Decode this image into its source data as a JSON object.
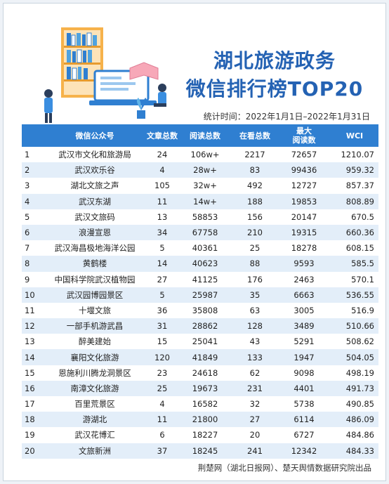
{
  "title": {
    "line1": "湖北旅游政务",
    "line2": "微信排行榜TOP20"
  },
  "stat_time": "统计时间：2022年1月1日–2022年1月31日",
  "table": {
    "headers": {
      "rank": "",
      "name": "微信公众号",
      "articles": "文章总数",
      "reads": "阅读总数",
      "watching": "在看总数",
      "max_reads_l1": "最大",
      "max_reads_l2": "阅读数",
      "wci": "WCI"
    },
    "rows": [
      {
        "rank": "1",
        "name": "武汉市文化和旅游局",
        "articles": "24",
        "reads": "106w+",
        "watching": "2217",
        "max_reads": "72657",
        "wci": "1210.07"
      },
      {
        "rank": "2",
        "name": "武汉欢乐谷",
        "articles": "4",
        "reads": "28w+",
        "watching": "83",
        "max_reads": "99436",
        "wci": "959.32"
      },
      {
        "rank": "3",
        "name": "湖北文旅之声",
        "articles": "105",
        "reads": "32w+",
        "watching": "492",
        "max_reads": "12727",
        "wci": "857.37"
      },
      {
        "rank": "4",
        "name": "武汉东湖",
        "articles": "11",
        "reads": "14w+",
        "watching": "188",
        "max_reads": "19853",
        "wci": "808.89"
      },
      {
        "rank": "5",
        "name": "武汉文旅码",
        "articles": "13",
        "reads": "58853",
        "watching": "156",
        "max_reads": "20147",
        "wci": "670.5"
      },
      {
        "rank": "6",
        "name": "浪漫宣恩",
        "articles": "34",
        "reads": "67758",
        "watching": "210",
        "max_reads": "19315",
        "wci": "660.36"
      },
      {
        "rank": "7",
        "name": "武汉海昌极地海洋公园",
        "articles": "5",
        "reads": "40361",
        "watching": "25",
        "max_reads": "18278",
        "wci": "608.15"
      },
      {
        "rank": "8",
        "name": "黄鹤楼",
        "articles": "14",
        "reads": "40623",
        "watching": "88",
        "max_reads": "9593",
        "wci": "585.5"
      },
      {
        "rank": "9",
        "name": "中国科学院武汉植物园",
        "articles": "27",
        "reads": "41125",
        "watching": "176",
        "max_reads": "2463",
        "wci": "570.1"
      },
      {
        "rank": "10",
        "name": "武汉园博园景区",
        "articles": "5",
        "reads": "25987",
        "watching": "35",
        "max_reads": "6663",
        "wci": "536.55"
      },
      {
        "rank": "11",
        "name": "十堰文旅",
        "articles": "36",
        "reads": "35808",
        "watching": "63",
        "max_reads": "3005",
        "wci": "516.9"
      },
      {
        "rank": "12",
        "name": "一部手机游武昌",
        "articles": "31",
        "reads": "28862",
        "watching": "128",
        "max_reads": "3489",
        "wci": "510.66"
      },
      {
        "rank": "13",
        "name": "醉美建始",
        "articles": "15",
        "reads": "25041",
        "watching": "43",
        "max_reads": "5291",
        "wci": "508.62"
      },
      {
        "rank": "14",
        "name": "襄阳文化旅游",
        "articles": "120",
        "reads": "41849",
        "watching": "133",
        "max_reads": "1947",
        "wci": "504.05"
      },
      {
        "rank": "15",
        "name": "恩施利川腾龙洞景区",
        "articles": "23",
        "reads": "24618",
        "watching": "62",
        "max_reads": "9098",
        "wci": "498.19"
      },
      {
        "rank": "16",
        "name": "南漳文化旅游",
        "articles": "25",
        "reads": "19673",
        "watching": "231",
        "max_reads": "4401",
        "wci": "491.73"
      },
      {
        "rank": "17",
        "name": "百里荒景区",
        "articles": "4",
        "reads": "16582",
        "watching": "32",
        "max_reads": "5738",
        "wci": "490.85"
      },
      {
        "rank": "18",
        "name": "游湖北",
        "articles": "11",
        "reads": "21800",
        "watching": "27",
        "max_reads": "6114",
        "wci": "486.09"
      },
      {
        "rank": "19",
        "name": "武汉花博汇",
        "articles": "6",
        "reads": "18227",
        "watching": "20",
        "max_reads": "6727",
        "wci": "484.86"
      },
      {
        "rank": "20",
        "name": "文旅新洲",
        "articles": "37",
        "reads": "18245",
        "watching": "241",
        "max_reads": "12342",
        "wci": "484.33"
      }
    ]
  },
  "footer": "荆楚网（湖北日报网）、楚天舆情数据研究院出品",
  "colors": {
    "title": "#2462b3",
    "header_bg": "#2f7fd1",
    "row_alt_bg": "#e3eef9"
  },
  "illustration": "bookshelf-laptop-readers-illustration"
}
